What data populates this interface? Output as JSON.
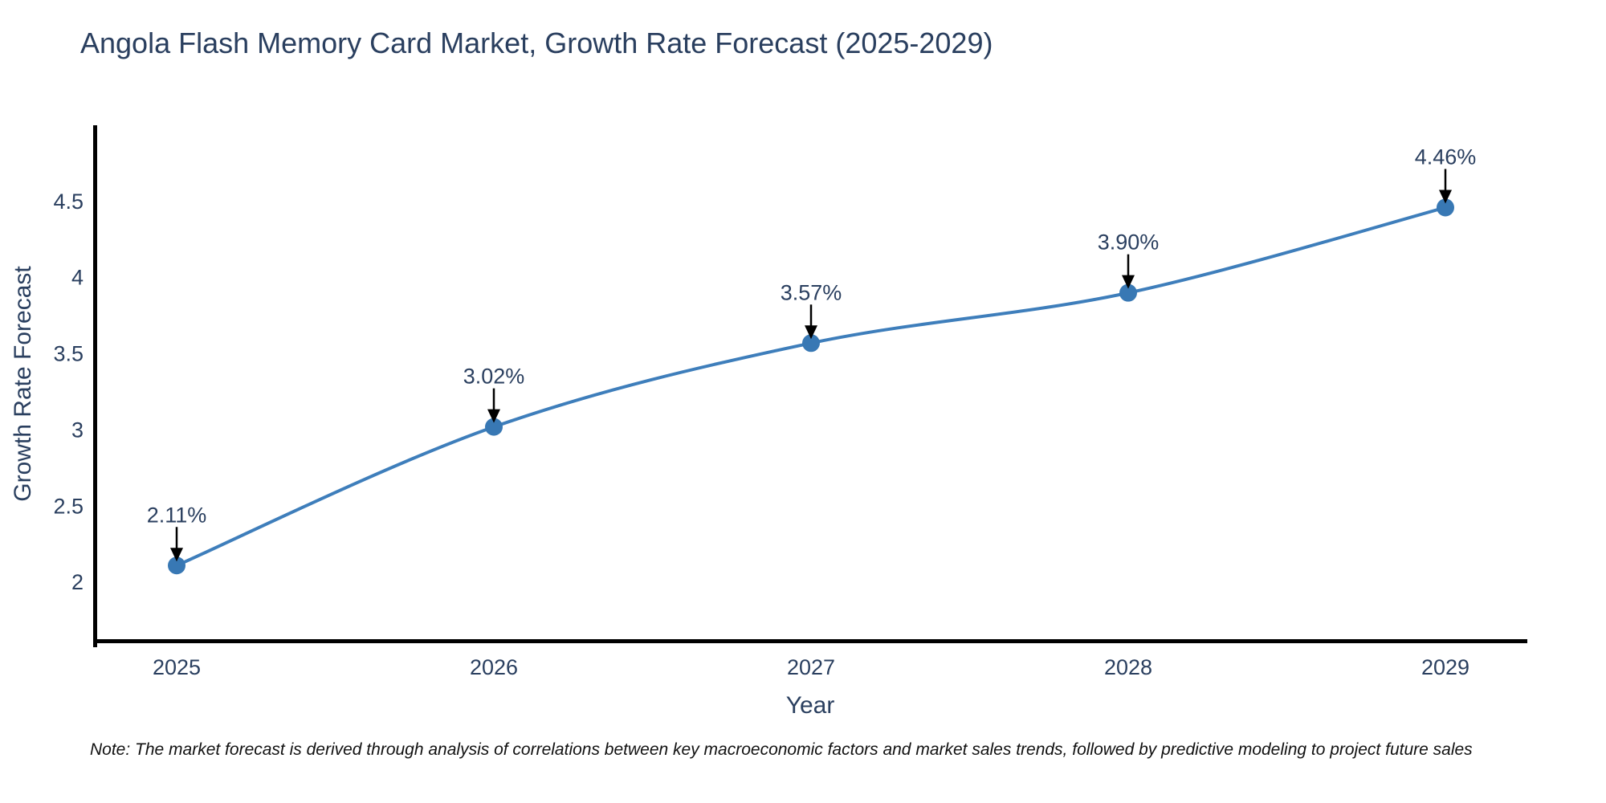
{
  "page": {
    "background": "#ffffff"
  },
  "chart_data": {
    "type": "line",
    "title": "Angola Flash Memory Card Market, Growth Rate Forecast (2025-2029)",
    "xlabel": "Year",
    "ylabel": "Growth Rate Forecast",
    "categories": [
      "2025",
      "2026",
      "2027",
      "2028",
      "2029"
    ],
    "values": [
      2.11,
      3.02,
      3.57,
      3.9,
      4.46
    ],
    "point_labels": [
      "2.11%",
      "3.02%",
      "3.57%",
      "3.90%",
      "4.46%"
    ],
    "yticks": [
      "2",
      "2.5",
      "3",
      "3.5",
      "4",
      "4.5"
    ],
    "ytick_values": [
      2,
      2.5,
      3,
      3.5,
      4,
      4.5
    ],
    "ylim": [
      1.6,
      5.0
    ],
    "grid": false,
    "legend": "none",
    "line_shape": "spline",
    "annotations_have_arrows": true,
    "colors": {
      "line": "#3e7ebb",
      "marker": "#3878b4",
      "title_text": "#2a3f5f",
      "tick_text": "#2a3f5f",
      "annotation_text": "#2a3f5f",
      "arrow": "#000000",
      "axis_line": "#000000",
      "background": "#ffffff"
    }
  },
  "note": {
    "text": "Note: The market forecast is derived through analysis of correlations between key macroeconomic factors and market sales trends, followed by predictive modeling to project future sales"
  }
}
